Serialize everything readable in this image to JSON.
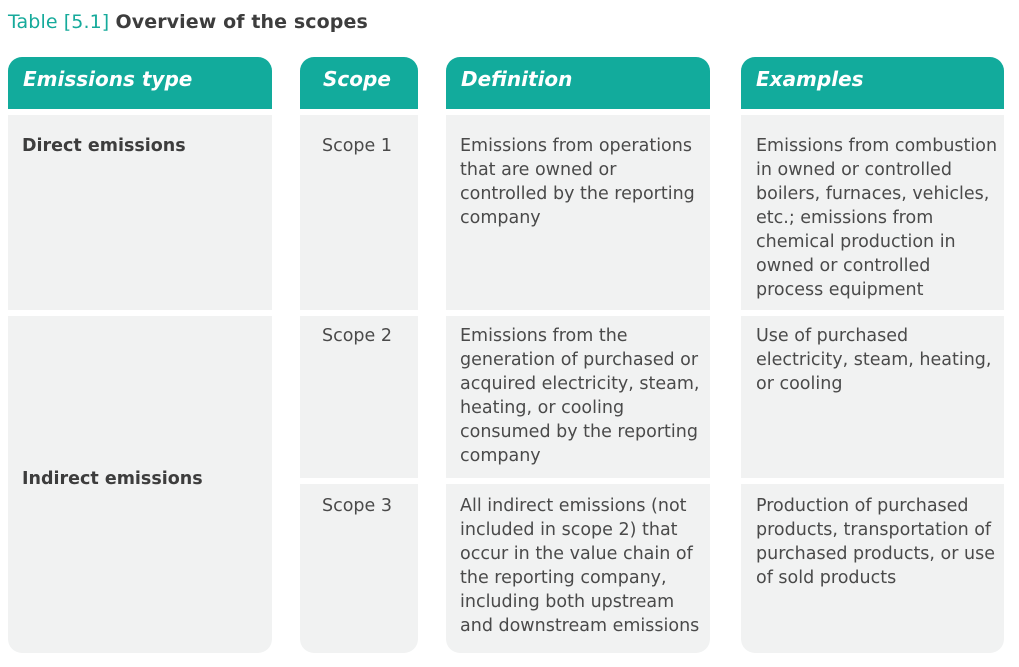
{
  "caption": {
    "number": "Table [5.1]",
    "title": "Overview of the scopes"
  },
  "headers": [
    "Emissions type",
    "Scope",
    "Definition",
    "Examples"
  ],
  "emission_types": {
    "direct": "Direct emissions",
    "indirect": "Indirect emissions"
  },
  "rows": [
    {
      "scope": "Scope 1",
      "definition": "Emissions from operations that are owned or controlled by the reporting company",
      "examples": "Emissions from combustion in owned or controlled boilers, furnaces, vehicles, etc.; emissions from chemical production in owned or controlled process equipment"
    },
    {
      "scope": "Scope 2",
      "definition": "Emissions from the generation of purchased or acquired electricity, steam, heating, or cooling consumed by the reporting company",
      "examples": "Use of purchased electricity, steam, heating, or cooling"
    },
    {
      "scope": "Scope 3",
      "definition": "All indirect emissions (not included in scope 2) that occur in the value chain of the reporting company, including both upstream and downstream emissions",
      "examples": "Production of purchased products, transportation of purchased products, or use of sold products"
    }
  ],
  "colors": {
    "accent": "#12ab9c",
    "cell_bg": "#f1f2f2"
  }
}
